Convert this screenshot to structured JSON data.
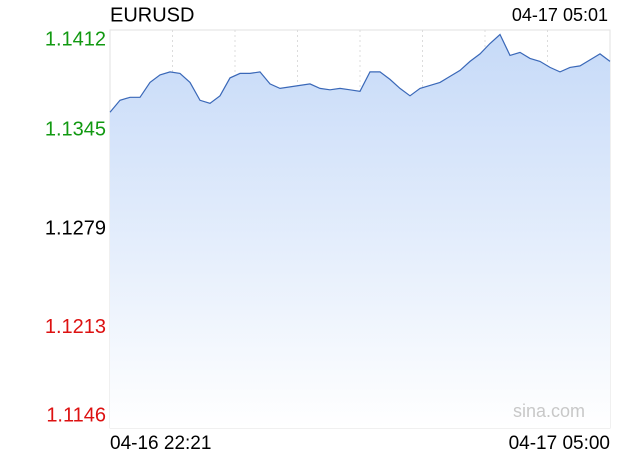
{
  "chart_data": {
    "type": "area",
    "title": "EURUSD",
    "timestamp": "04-17 05:01",
    "watermark": "sina.com",
    "x_labels": [
      "04-16 22:21",
      "04-17 05:00"
    ],
    "values": [
      1.1357,
      1.1365,
      1.1367,
      1.1367,
      1.1377,
      1.1382,
      1.1384,
      1.1383,
      1.1377,
      1.1365,
      1.1363,
      1.1368,
      1.138,
      1.1383,
      1.1383,
      1.1384,
      1.1376,
      1.1373,
      1.1374,
      1.1375,
      1.1376,
      1.1373,
      1.1372,
      1.1373,
      1.1372,
      1.1371,
      1.1384,
      1.1384,
      1.1379,
      1.1373,
      1.1368,
      1.1373,
      1.1375,
      1.1377,
      1.1381,
      1.1385,
      1.1391,
      1.1396,
      1.1403,
      1.1409,
      1.1395,
      1.1397,
      1.1393,
      1.1391,
      1.1387,
      1.1384,
      1.1387,
      1.1388,
      1.1392,
      1.1396,
      1.1391
    ],
    "color": "#3a68b8",
    "ylim": [
      1.1146,
      1.1412
    ],
    "yticks": [
      1.1146,
      1.1213,
      1.1279,
      1.1345,
      1.1412
    ],
    "reference_line": 1.1279,
    "up_color": "#119911",
    "down_color": "#dd1111",
    "flat_color": "#000000",
    "grid": true
  }
}
